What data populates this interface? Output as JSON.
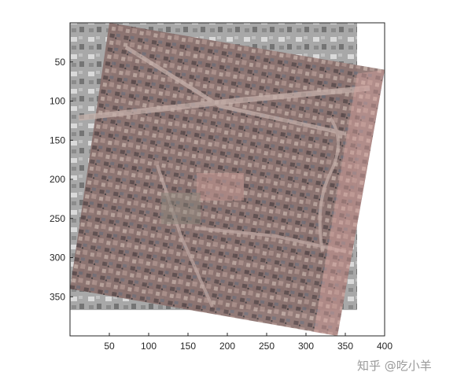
{
  "chart_data": {
    "type": "image",
    "title": "",
    "xlabel": "",
    "ylabel": "",
    "xlim": [
      0,
      400
    ],
    "ylim": [
      400,
      0
    ],
    "y_direction": "reversed",
    "xticks": [
      50,
      100,
      150,
      200,
      250,
      300,
      350,
      400
    ],
    "yticks": [
      50,
      100,
      150,
      200,
      250,
      300,
      350
    ],
    "layers": [
      {
        "name": "grayscale-aerial",
        "colormap": "gray",
        "corners": [
          [
            0,
            0
          ],
          [
            365,
            0
          ],
          [
            365,
            367
          ],
          [
            0,
            367
          ]
        ]
      },
      {
        "name": "color-aerial",
        "colormap": "rgb",
        "corners": [
          [
            50,
            0
          ],
          [
            400,
            60
          ],
          [
            340,
            400
          ],
          [
            0,
            340
          ]
        ]
      }
    ]
  },
  "watermark": "知乎 @吃小羊",
  "colors": {
    "axis": "#262626",
    "gray_base": "#9b9b9b",
    "color_base": "#8a6f6c",
    "road": "#c8b3ad",
    "accent_pink": "#d6a3a0"
  }
}
